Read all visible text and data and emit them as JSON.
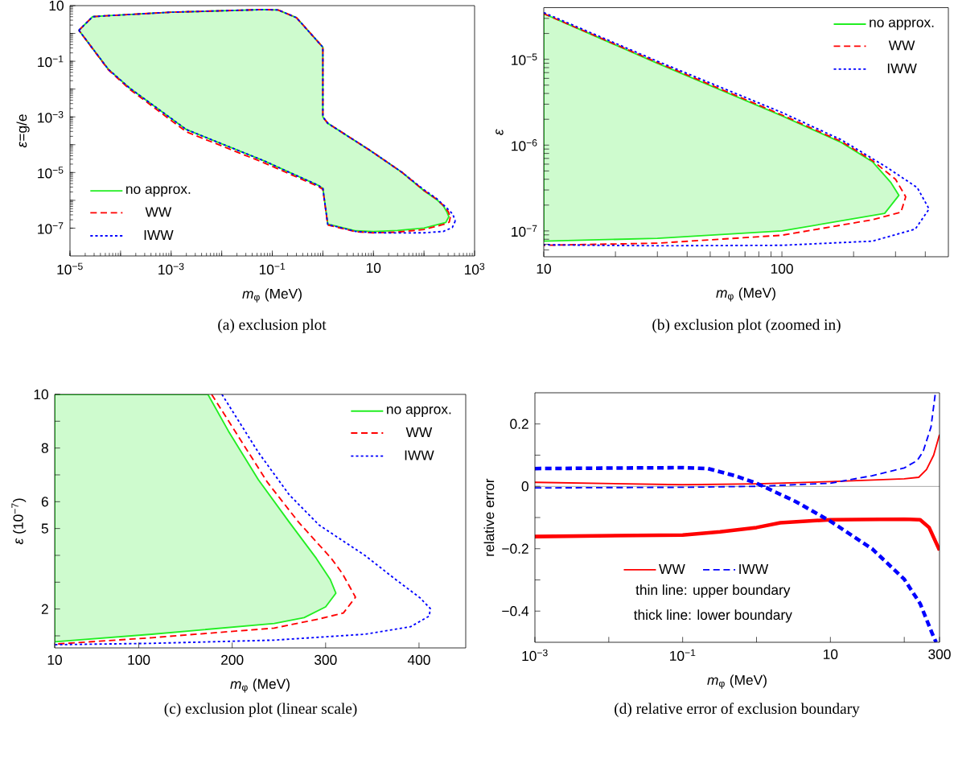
{
  "chart_data": [
    {
      "type": "line",
      "title": "(a) exclusion plot",
      "xlabel": "*m*$_{φ}$ (MeV)",
      "ylabel": "*ε*=g/e",
      "log": "xy",
      "xlim": [
        1e-05,
        1000
      ],
      "ylim": [
        1e-08,
        10
      ],
      "xticks": [
        {
          "value": 1e-05,
          "label": "10$^{−5}$"
        },
        {
          "value": 0.0001,
          "label": null
        },
        {
          "value": 0.001,
          "label": "10$^{−3}$"
        },
        {
          "value": 0.01,
          "label": null
        },
        {
          "value": 0.1,
          "label": "10$^{−1}$"
        },
        {
          "value": 1,
          "label": null
        },
        10,
        {
          "value": 100,
          "label": null
        },
        {
          "value": 1000,
          "label": "10$^{3}$"
        }
      ],
      "yticks": [
        {
          "value": 1e-07,
          "label": "10$^{−7}$"
        },
        {
          "value": 1e-06,
          "label": null
        },
        {
          "value": 1e-05,
          "label": "10$^{−5}$"
        },
        {
          "value": 0.0001,
          "label": null
        },
        {
          "value": 0.001,
          "label": "10$^{−3}$"
        },
        {
          "value": 0.01,
          "label": null
        },
        {
          "value": 0.1,
          "label": "10$^{−1}$"
        },
        {
          "value": 1,
          "label": null
        },
        10
      ],
      "legend": "bottom left",
      "series": [
        {
          "name": "no approx.",
          "type": "area",
          "color": "#22ee22",
          "line_style": "solid",
          "x": [
            1.5e-05,
            2.8e-05,
            5e-05,
            0.001,
            0.066,
            0.13,
            0.3,
            1,
            1,
            1.25,
            9,
            37,
            100,
            178,
            240,
            286,
            310,
            270,
            100,
            30,
            10,
            4.5,
            1.25,
            1,
            0.8,
            0.066,
            0.002,
            0.00015,
            5.7e-05,
            1.5e-05
          ],
          "values": [
            1.3,
            4,
            4.3,
            5.8,
            7.2,
            7,
            3.7,
            0.32,
            0.001,
            0.00059,
            5.9e-05,
            1e-05,
            2.2e-06,
            1.07e-06,
            6.4e-07,
            3.7e-07,
            2.6e-07,
            1.6e-07,
            1e-07,
            8.2e-08,
            7.6e-08,
            8e-08,
            1.4e-07,
            2.7e-06,
            3.5e-06,
            2.7e-05,
            0.00035,
            0.011,
            0.052,
            1.3
          ]
        },
        {
          "name": "WW",
          "color": "#ff0000",
          "line_style": "dashed",
          "x": [
            1.5e-05,
            2.8e-05,
            5e-05,
            0.001,
            0.066,
            0.13,
            0.3,
            1,
            1,
            1.25,
            9,
            37,
            100,
            178,
            240,
            300,
            331
          ],
          "values": [
            1.3,
            4,
            4.3,
            5.8,
            7.2,
            7,
            3.7,
            0.32,
            0.001,
            0.00059,
            5.9e-05,
            1e-05,
            2.25e-06,
            1.1e-06,
            6.6e-07,
            4e-07,
            2.5e-07
          ]
        },
        {
          "color": "#ff0000",
          "line_style": "dashed",
          "x": [
            331,
            316,
            240,
            100,
            30,
            10,
            4.5,
            1.25,
            1,
            0.8,
            0.066,
            0.002,
            0.00015,
            5.7e-05,
            1.5e-05
          ],
          "values": [
            2.5e-07,
            1.65e-07,
            1.35e-07,
            8.9e-08,
            7.2e-08,
            6.8e-08,
            7.4e-08,
            1.3e-07,
            2.5e-06,
            3.2e-06,
            2.3e-05,
            0.00029,
            0.01,
            0.05,
            1.3
          ]
        },
        {
          "name": "IWW",
          "color": "#0000ff",
          "line_style": "dotted",
          "x": [
            1.5e-05,
            2.8e-05,
            5e-05,
            0.001,
            0.066,
            0.13,
            0.3,
            1,
            1,
            1.25,
            9,
            37,
            100,
            178,
            276,
            370,
            415
          ],
          "values": [
            1.3,
            4,
            4.3,
            5.8,
            7.2,
            7,
            3.7,
            0.32,
            0.001,
            0.00059,
            5.9e-05,
            1e-05,
            2.4e-06,
            1.15e-06,
            5.5e-07,
            3.2e-07,
            1.8e-07
          ]
        },
        {
          "color": "#0000ff",
          "line_style": "dotted",
          "x": [
            415,
            363,
            240,
            100,
            30,
            10,
            4.5,
            1.25,
            1,
            0.8,
            0.066,
            0.002,
            0.00015,
            5.7e-05,
            1.5e-05
          ],
          "values": [
            1.8e-07,
            1.05e-07,
            7.6e-08,
            6.8e-08,
            6.7e-08,
            6.9e-08,
            7.6e-08,
            1.35e-07,
            2.7e-06,
            3.5e-06,
            2.7e-05,
            0.00035,
            0.011,
            0.052,
            1.3
          ]
        }
      ]
    },
    {
      "type": "line",
      "title": "(b) exclusion plot (zoomed in)",
      "xlabel": "*m*$_{φ}$ (MeV)",
      "ylabel": "*ε*",
      "log": "xy",
      "xlim": [
        10,
        500
      ],
      "ylim": [
        5e-08,
        4e-05
      ],
      "xticks": [
        10,
        {
          "value": 20,
          "label": null
        },
        {
          "value": 30,
          "label": null
        },
        {
          "value": 40,
          "label": null
        },
        {
          "value": 50,
          "label": null
        },
        {
          "value": 60,
          "label": null
        },
        {
          "value": 70,
          "label": null
        },
        {
          "value": 80,
          "label": null
        },
        {
          "value": 90,
          "label": null
        },
        100,
        {
          "value": 200,
          "label": null
        },
        {
          "value": 300,
          "label": null
        },
        {
          "value": 400,
          "label": null
        }
      ],
      "yticks": [
        {
          "value": 6e-08,
          "label": null
        },
        {
          "value": 7e-08,
          "label": null
        },
        {
          "value": 8e-08,
          "label": null
        },
        {
          "value": 9e-08,
          "label": null
        },
        {
          "value": 1e-07,
          "label": "10$^{−7}$"
        },
        {
          "value": 2e-07,
          "label": null
        },
        {
          "value": 3e-07,
          "label": null
        },
        {
          "value": 4e-07,
          "label": null
        },
        {
          "value": 5e-07,
          "label": null
        },
        {
          "value": 6e-07,
          "label": null
        },
        {
          "value": 7e-07,
          "label": null
        },
        {
          "value": 8e-07,
          "label": null
        },
        {
          "value": 9e-07,
          "label": null
        },
        {
          "value": 1e-06,
          "label": "10$^{−6}$"
        },
        {
          "value": 2e-06,
          "label": null
        },
        {
          "value": 3e-06,
          "label": null
        },
        {
          "value": 4e-06,
          "label": null
        },
        {
          "value": 5e-06,
          "label": null
        },
        {
          "value": 6e-06,
          "label": null
        },
        {
          "value": 7e-06,
          "label": null
        },
        {
          "value": 8e-06,
          "label": null
        },
        {
          "value": 9e-06,
          "label": null
        },
        {
          "value": 1e-05,
          "label": "10$^{−5}$"
        },
        {
          "value": 2e-05,
          "label": null
        },
        {
          "value": 3e-05,
          "label": null
        }
      ],
      "legend": "top right",
      "series": [
        {
          "name": "no approx.",
          "type": "area",
          "color": "#22ee22",
          "line_style": "solid",
          "x": [
            10,
            30,
            100,
            178,
            240,
            286,
            310,
            270,
            100,
            30,
            10
          ],
          "values": [
            3.4e-05,
            9e-06,
            2.2e-06,
            1.07e-06,
            6.4e-07,
            3.7e-07,
            2.6e-07,
            1.6e-07,
            1e-07,
            8.2e-08,
            7.6e-08
          ]
        },
        {
          "name": "WW",
          "color": "#ff0000",
          "line_style": "dashed",
          "x": [
            10,
            30,
            100,
            178,
            240,
            300,
            331,
            316,
            240,
            100,
            30,
            10
          ],
          "values": [
            3.4e-05,
            9.2e-06,
            2.25e-06,
            1.1e-06,
            6.6e-07,
            4e-07,
            2.5e-07,
            1.65e-07,
            1.35e-07,
            8.9e-08,
            7.2e-08,
            6.8e-08
          ]
        },
        {
          "name": "IWW",
          "color": "#0000ff",
          "line_style": "dotted",
          "x": [
            10,
            30,
            100,
            178,
            276,
            370,
            415,
            363,
            240,
            100,
            30,
            10
          ],
          "values": [
            3.5e-05,
            9.5e-06,
            2.4e-06,
            1.15e-06,
            5.5e-07,
            3.2e-07,
            1.8e-07,
            1.05e-07,
            7.6e-08,
            6.8e-08,
            6.7e-08,
            6.9e-08
          ]
        }
      ]
    },
    {
      "type": "line",
      "title": "(c) exclusion plot (linear scale)",
      "xlabel": "*m*$_{φ}$ (MeV)",
      "ylabel": "*ε* (10$^{−7}$)",
      "xlim": [
        10,
        450
      ],
      "ylim": [
        0.55,
        10
      ],
      "xticks": [
        10,
        100,
        200,
        300,
        400
      ],
      "yticks": [
        {
          "value": 1,
          "label": null
        },
        2,
        {
          "value": 3,
          "label": null
        },
        {
          "value": 4,
          "label": null
        },
        5,
        6,
        {
          "value": 7,
          "label": null
        },
        8,
        {
          "value": 9,
          "label": null
        },
        10
      ],
      "legend": "top right",
      "series": [
        {
          "name": "no approx.",
          "type": "area",
          "color": "#22ee22",
          "line_style": "solid",
          "x": [
            10,
            174,
            196,
            228,
            261,
            290,
            305,
            311,
            300,
            277,
            245,
            114,
            10
          ],
          "values": [
            10,
            10,
            8.63,
            6.82,
            5.24,
            3.89,
            3.1,
            2.59,
            2.08,
            1.68,
            1.46,
            1.06,
            0.78
          ]
        },
        {
          "name": "WW",
          "color": "#ff0000",
          "line_style": "dashed",
          "x": [
            178,
            205,
            238,
            271,
            306,
            318,
            332,
            319,
            293,
            245,
            114,
            10
          ],
          "values": [
            10,
            8.52,
            6.71,
            5.24,
            3.89,
            3.32,
            2.44,
            1.85,
            1.63,
            1.29,
            0.93,
            0.69
          ]
        },
        {
          "name": "IWW",
          "color": "#0000ff",
          "line_style": "dotted",
          "x": [
            189,
            228,
            261,
            293,
            342,
            375,
            401,
            412,
            411,
            391,
            342,
            245,
            114,
            10
          ],
          "values": [
            10,
            7.84,
            6.26,
            5.13,
            4.0,
            3.1,
            2.42,
            2.02,
            1.74,
            1.34,
            1.06,
            0.84,
            0.72,
            0.67
          ]
        }
      ]
    },
    {
      "type": "line",
      "title": "(d) relative error of exclusion boundary",
      "xlabel": "*m*$_{φ}$ (MeV)",
      "ylabel": "relative error",
      "log": "x",
      "xlim": [
        0.001,
        300
      ],
      "ylim": [
        -0.5,
        0.3
      ],
      "xticks": [
        {
          "value": 0.001,
          "label": "10$^{−3}$"
        },
        {
          "value": 0.01,
          "label": null
        },
        {
          "value": 0.1,
          "label": "10$^{−1}$"
        },
        {
          "value": 1,
          "label": null
        },
        10,
        {
          "value": 100,
          "label": null
        },
        300
      ],
      "yticks": [
        {
          "value": -0.4,
          "label": "−0.4"
        },
        {
          "value": -0.3,
          "label": null
        },
        {
          "value": -0.2,
          "label": "−0.2"
        },
        {
          "value": -0.1,
          "label": null
        },
        0,
        {
          "value": 0.1,
          "label": null
        },
        0.2
      ],
      "legend": "bottom",
      "ref_lines": [
        {
          "axis": "y",
          "value": 0,
          "color": "#808080"
        }
      ],
      "annotations": [
        "thin line: upper boundary",
        "thick line: lower boundary"
      ],
      "series": [
        {
          "name": "WW",
          "color": "#ff0000",
          "line_style": "solid",
          "x": [
            0.001,
            0.1,
            1,
            10,
            100,
            157,
            200,
            250,
            300
          ],
          "values": [
            0.013,
            0.005,
            0.008,
            0.015,
            0.024,
            0.029,
            0.054,
            0.1,
            0.166
          ]
        },
        {
          "name": "IWW",
          "color": "#0000ff",
          "line_style": "dashed",
          "x": [
            0.001,
            0.1,
            1,
            10,
            36.6,
            100,
            150,
            180,
            230,
            264
          ],
          "values": [
            -0.005,
            -0.003,
            0,
            0.01,
            0.034,
            0.059,
            0.083,
            0.112,
            0.19,
            0.3
          ]
        },
        {
          "color": "#ff0000",
          "line_style": "solid",
          "x": [
            0.001,
            0.1,
            0.32,
            1,
            2.1,
            10,
            100,
            164,
            217,
            300
          ],
          "values": [
            -0.161,
            -0.156,
            -0.146,
            -0.132,
            -0.117,
            -0.107,
            -0.105,
            -0.107,
            -0.132,
            -0.205
          ]
        },
        {
          "color": "#0000ff",
          "line_style": "dashed",
          "x": [
            0.001,
            0.1,
            0.22,
            0.51,
            1,
            3.4,
            10,
            36.6,
            100,
            164,
            240,
            270
          ],
          "values": [
            0.057,
            0.06,
            0.057,
            0.034,
            0.01,
            -0.049,
            -0.112,
            -0.2,
            -0.298,
            -0.376,
            -0.473,
            -0.5
          ]
        }
      ]
    }
  ]
}
